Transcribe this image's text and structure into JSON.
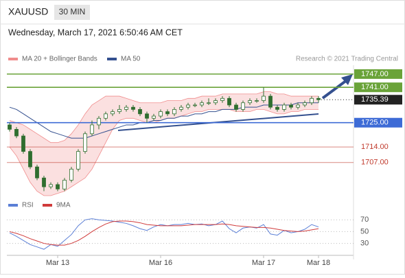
{
  "header": {
    "symbol": "XAUUSD",
    "interval": "30 MIN",
    "timestamp": "Wednesday, March 17, 2021 6:50:46 AM CET"
  },
  "chart_data": [
    {
      "type": "candlestick",
      "credit": "Research © 2021 Trading Central",
      "categories": [
        null,
        null,
        null,
        null,
        null,
        null,
        null,
        "Mar 13",
        null,
        null,
        null,
        null,
        null,
        null,
        null,
        null,
        null,
        null,
        null,
        null,
        null,
        null,
        "Mar 16",
        null,
        null,
        null,
        null,
        null,
        null,
        null,
        null,
        null,
        null,
        null,
        null,
        null,
        null,
        "Mar 17",
        null,
        null,
        null,
        null,
        null,
        null,
        null,
        "Mar 18"
      ],
      "open": [
        1724,
        1722,
        1719,
        1712,
        1705,
        1700,
        1696,
        1697,
        1695,
        1699,
        1704,
        1712,
        1720,
        1724,
        1727,
        1729,
        1730,
        1731,
        1732,
        1731,
        1729,
        1727,
        1728,
        1730,
        1729,
        1731,
        1732,
        1733,
        1733,
        1734,
        1734,
        1735,
        1736,
        1733,
        1731,
        1734,
        1735,
        1735,
        1737,
        1732,
        1731,
        1733,
        1732,
        1733,
        1734,
        1736
      ],
      "high": [
        1725,
        1723,
        1720,
        1713,
        1706,
        1701,
        1698,
        1698,
        1700,
        1705,
        1713,
        1721,
        1726,
        1728,
        1730,
        1731,
        1733,
        1733,
        1733,
        1732,
        1730,
        1729,
        1731,
        1731,
        1732,
        1733,
        1734,
        1734,
        1735,
        1736,
        1736,
        1737,
        1737,
        1734,
        1735,
        1736,
        1736,
        1741,
        1738,
        1733,
        1734,
        1734,
        1734,
        1735,
        1737,
        1737
      ],
      "low": [
        1721,
        1718,
        1711,
        1704,
        1699,
        1694,
        1695,
        1694,
        1694,
        1698,
        1703,
        1711,
        1719,
        1722,
        1726,
        1728,
        1729,
        1730,
        1730,
        1728,
        1725,
        1726,
        1727,
        1728,
        1728,
        1730,
        1731,
        1732,
        1732,
        1733,
        1733,
        1734,
        1732,
        1730,
        1730,
        1733,
        1734,
        1734,
        1731,
        1730,
        1730,
        1731,
        1731,
        1732,
        1733,
        1734
      ],
      "close": [
        1722,
        1719,
        1712,
        1705,
        1700,
        1696,
        1697,
        1695,
        1699,
        1704,
        1712,
        1720,
        1724,
        1727,
        1729,
        1730,
        1731,
        1732,
        1731,
        1729,
        1727,
        1728,
        1730,
        1729,
        1731,
        1732,
        1733,
        1733,
        1734,
        1734,
        1735,
        1736,
        1733,
        1731,
        1734,
        1735,
        1735,
        1737,
        1732,
        1731,
        1733,
        1732,
        1733,
        1734,
        1736,
        1735.39
      ],
      "up_color": "#ffffff",
      "down_color": "#2f6e2f",
      "wick_color": "#2f6e2f",
      "series": [
        {
          "name": "MA 20 + Bollinger Bands",
          "color": "#f08c8c",
          "band_color": "#fbe0e0",
          "upper": [
            1726,
            1725,
            1724,
            1722,
            1720,
            1718,
            1716,
            1716,
            1717,
            1720,
            1724,
            1729,
            1733,
            1735,
            1737,
            1737,
            1737,
            1736,
            1735,
            1734,
            1734,
            1734,
            1734,
            1735,
            1735,
            1735,
            1736,
            1736,
            1737,
            1737,
            1737,
            1738,
            1738,
            1738,
            1738,
            1738,
            1738,
            1739,
            1739,
            1738,
            1738,
            1737,
            1737,
            1737,
            1737,
            1737
          ],
          "lower": [
            1714,
            1710,
            1704,
            1698,
            1694,
            1692,
            1692,
            1693,
            1694,
            1696,
            1698,
            1700,
            1704,
            1710,
            1716,
            1722,
            1726,
            1727,
            1727,
            1726,
            1725,
            1725,
            1726,
            1727,
            1727,
            1728,
            1729,
            1730,
            1730,
            1731,
            1731,
            1731,
            1731,
            1730,
            1730,
            1730,
            1731,
            1731,
            1730,
            1729,
            1729,
            1730,
            1730,
            1731,
            1731,
            1731
          ]
        },
        {
          "name": "MA 50",
          "color": "#34508f",
          "values": [
            1732,
            1731,
            1729,
            1727,
            1725,
            1723,
            1721,
            1720,
            1719,
            1718,
            1718,
            1718,
            1719,
            1720,
            1721,
            1722,
            1723,
            1724,
            1724,
            1725,
            1725,
            1726,
            1726,
            1727,
            1727,
            1728,
            1728,
            1729,
            1729,
            1730,
            1730,
            1731,
            1731,
            1731,
            1732,
            1732,
            1732,
            1733,
            1733,
            1733,
            1733,
            1733,
            1734,
            1734,
            1734,
            1734
          ]
        }
      ],
      "levels": [
        {
          "value": 1747,
          "label": "1747.00",
          "color": "#6aa339",
          "boxed": true
        },
        {
          "value": 1741,
          "label": "1741.00",
          "color": "#6aa339",
          "boxed": true
        },
        {
          "value": 1725,
          "label": "1725.00",
          "color": "#3d6bd6",
          "boxed": true
        },
        {
          "value": 1714,
          "label": "1714.00",
          "color": "#c0392b",
          "boxed": false
        },
        {
          "value": 1707,
          "label": "1707.00",
          "color": "#c0392b",
          "boxed": false
        }
      ],
      "current": 1735.39,
      "ylim": [
        1692,
        1751
      ]
    },
    {
      "type": "line",
      "series": [
        {
          "name": "RSI",
          "color": "#5b7fd6",
          "values": [
            48,
            42,
            35,
            28,
            24,
            20,
            28,
            25,
            35,
            45,
            60,
            70,
            72,
            70,
            69,
            68,
            66,
            64,
            60,
            55,
            52,
            58,
            62,
            60,
            62,
            62,
            64,
            62,
            63,
            60,
            62,
            68,
            55,
            48,
            56,
            58,
            56,
            62,
            46,
            44,
            52,
            48,
            50,
            54,
            62,
            58
          ]
        },
        {
          "name": "9MA",
          "color": "#d03a3a",
          "values": [
            50,
            47,
            43,
            38,
            34,
            30,
            28,
            27,
            27,
            30,
            35,
            42,
            50,
            57,
            63,
            67,
            68,
            68,
            67,
            65,
            62,
            61,
            60,
            60,
            60,
            60,
            61,
            62,
            62,
            62,
            62,
            63,
            62,
            60,
            59,
            58,
            57,
            57,
            56,
            54,
            52,
            51,
            50,
            51,
            53,
            55
          ]
        }
      ],
      "ylim": [
        12,
        82
      ],
      "yticks": [
        30,
        50,
        70
      ]
    }
  ]
}
